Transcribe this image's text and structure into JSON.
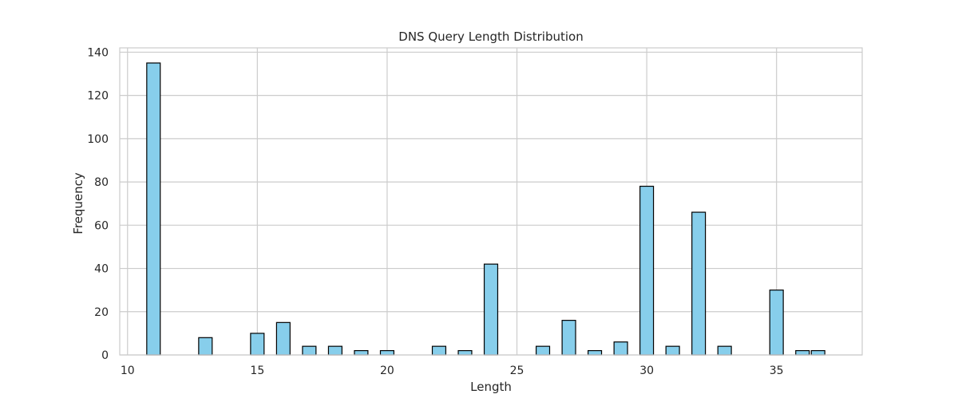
{
  "chart_data": {
    "type": "bar",
    "title": "DNS Query Length Distribution",
    "xlabel": "Length",
    "ylabel": "Frequency",
    "xlim": [
      9.7,
      38.3
    ],
    "ylim": [
      0,
      142
    ],
    "xticks": [
      10,
      15,
      20,
      25,
      30,
      35
    ],
    "yticks": [
      0,
      20,
      40,
      60,
      80,
      100,
      120,
      140
    ],
    "grid": true,
    "bar_width": 0.52,
    "x": [
      11,
      13,
      15,
      16,
      17,
      18,
      19,
      20,
      22,
      23,
      24,
      26,
      27,
      28,
      29,
      30,
      31,
      32,
      33,
      35,
      36,
      36.6
    ],
    "values": [
      135,
      8,
      10,
      15,
      4,
      4,
      2,
      2,
      4,
      2,
      42,
      4,
      16,
      2,
      6,
      78,
      4,
      66,
      4,
      30,
      2,
      2
    ],
    "colors": {
      "bar_fill": "#87ceeb",
      "bar_edge": "#000000",
      "grid": "#cccccc",
      "spine": "#cccccc"
    }
  }
}
